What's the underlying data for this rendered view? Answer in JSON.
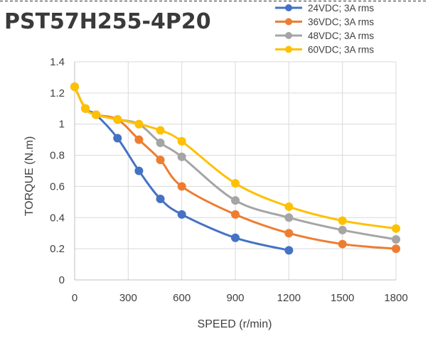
{
  "chart_data": {
    "type": "line",
    "title": "PST57H255-4P20",
    "xlabel": "SPEED (r/min)",
    "ylabel": "TORQUE (N.m)",
    "xlim": [
      0,
      1800
    ],
    "ylim": [
      0,
      1.4
    ],
    "x_ticks": [
      0,
      300,
      600,
      900,
      1200,
      1500,
      1800
    ],
    "y_ticks": [
      0,
      0.2,
      0.4,
      0.6,
      0.8,
      1,
      1.2,
      1.4
    ],
    "x_tick_labels": [
      "0",
      "300",
      "600",
      "900",
      "1200",
      "1500",
      "1800"
    ],
    "y_tick_labels": [
      "0",
      "0.2",
      "0.4",
      "0.6",
      "0.8",
      "1",
      "1.2",
      "1.4"
    ],
    "grid": true,
    "legend_position": "top-right",
    "series": [
      {
        "name": "24VDC; 3A rms",
        "color": "#4472C4",
        "points": [
          [
            0,
            1.24
          ],
          [
            60,
            1.1
          ],
          [
            120,
            1.06
          ],
          [
            240,
            0.91
          ],
          [
            360,
            0.7
          ],
          [
            480,
            0.52
          ],
          [
            600,
            0.42
          ],
          [
            900,
            0.27
          ],
          [
            1200,
            0.19
          ]
        ]
      },
      {
        "name": "36VDC; 3A rms",
        "color": "#ED7D31",
        "points": [
          [
            0,
            1.24
          ],
          [
            60,
            1.1
          ],
          [
            120,
            1.06
          ],
          [
            240,
            1.03
          ],
          [
            360,
            0.9
          ],
          [
            480,
            0.77
          ],
          [
            600,
            0.6
          ],
          [
            900,
            0.42
          ],
          [
            1200,
            0.3
          ],
          [
            1500,
            0.23
          ],
          [
            1800,
            0.2
          ]
        ]
      },
      {
        "name": "48VDC; 3A rms",
        "color": "#A5A5A5",
        "points": [
          [
            0,
            1.24
          ],
          [
            60,
            1.1
          ],
          [
            120,
            1.06
          ],
          [
            240,
            1.03
          ],
          [
            360,
            1.0
          ],
          [
            480,
            0.88
          ],
          [
            600,
            0.79
          ],
          [
            900,
            0.51
          ],
          [
            1200,
            0.4
          ],
          [
            1500,
            0.32
          ],
          [
            1800,
            0.26
          ]
        ]
      },
      {
        "name": "60VDC; 3A rms",
        "color": "#FFC000",
        "points": [
          [
            0,
            1.24
          ],
          [
            60,
            1.1
          ],
          [
            120,
            1.06
          ],
          [
            240,
            1.03
          ],
          [
            360,
            1.0
          ],
          [
            480,
            0.96
          ],
          [
            600,
            0.89
          ],
          [
            900,
            0.62
          ],
          [
            1200,
            0.47
          ],
          [
            1500,
            0.38
          ],
          [
            1800,
            0.33
          ]
        ]
      }
    ]
  }
}
